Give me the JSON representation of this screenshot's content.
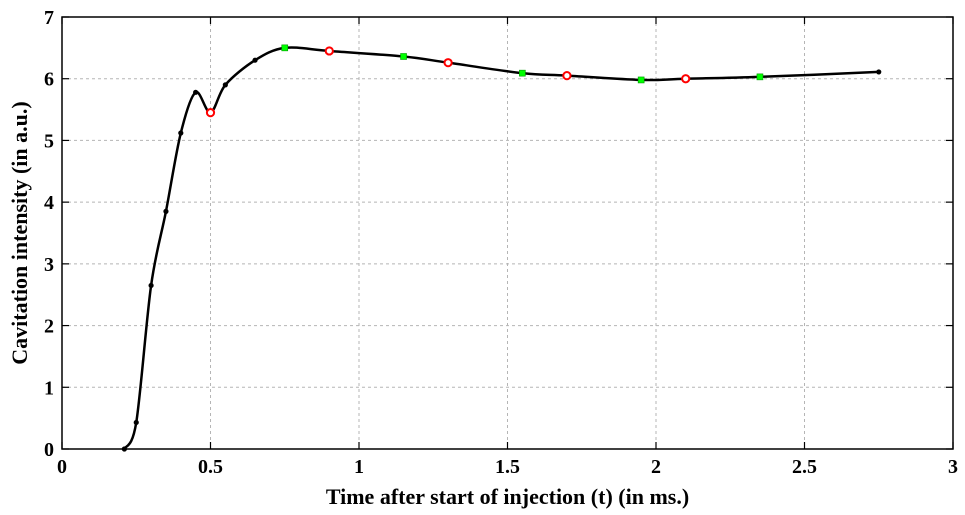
{
  "chart_data": {
    "type": "line",
    "title": "",
    "xlabel": "Time after start of injection (t) (in ms.)",
    "ylabel": "Cavitation intensity (in a.u.)",
    "xlim": [
      0,
      3
    ],
    "ylim": [
      0,
      7
    ],
    "xticks": [
      0,
      0.5,
      1,
      1.5,
      2,
      2.5,
      3
    ],
    "xtick_labels": [
      "0",
      "0.5",
      "1",
      "1.5",
      "2",
      "2.5",
      "3"
    ],
    "yticks": [
      0,
      1,
      2,
      3,
      4,
      5,
      6,
      7
    ],
    "ytick_labels": [
      "0",
      "1",
      "2",
      "3",
      "4",
      "5",
      "6",
      "7"
    ],
    "grid": true,
    "line_color": "#000000",
    "series": [
      {
        "x": [
          0.21,
          0.25,
          0.3,
          0.35,
          0.4,
          0.45,
          0.5,
          0.55,
          0.65,
          0.75,
          0.9,
          1.15,
          1.3,
          1.55,
          1.7,
          1.95,
          2.1,
          2.35,
          2.75
        ],
        "y": [
          0.0,
          0.43,
          2.65,
          3.85,
          5.12,
          5.78,
          5.45,
          5.9,
          6.3,
          6.5,
          6.45,
          6.36,
          6.26,
          6.09,
          6.05,
          5.98,
          6.0,
          6.03,
          6.11
        ],
        "markers": [
          "dot",
          "dot",
          "dot",
          "dot",
          "dot",
          "dot",
          "circle-red",
          "dot",
          "dot",
          "square-green",
          "circle-red",
          "square-green",
          "circle-red",
          "square-green",
          "circle-red",
          "square-green",
          "circle-red",
          "square-green",
          "dot"
        ]
      }
    ],
    "marker_colors": {
      "dot": "#000000",
      "circle-red": "#ff0000",
      "square-green": "#00ff00"
    }
  }
}
